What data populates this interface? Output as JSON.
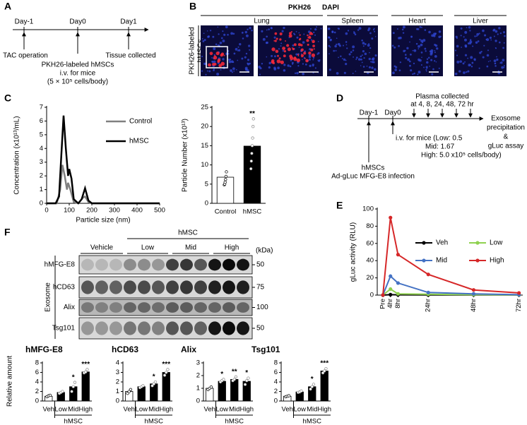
{
  "figure": {
    "A": {
      "label": "A",
      "days": [
        "Day-1",
        "Day0",
        "Day1"
      ],
      "note_day_minus1": "TAC operation",
      "note_day0": [
        "PKH26-labeled hMSCs",
        "i.v. for mice",
        "(5 × 10⁵ cells/body)"
      ],
      "note_day1": "Tissue collected"
    },
    "B": {
      "label": "B",
      "stains": [
        "PKH26",
        "DAPI"
      ],
      "tissues": [
        "Lung",
        "Spleen",
        "Heart",
        "Liver"
      ],
      "side_label": [
        "PKH26-labeled",
        "hMSCs"
      ]
    },
    "C": {
      "label": "C"
    },
    "D": {
      "label": "D",
      "days": [
        "Day-1",
        "Day0"
      ],
      "plasma": [
        "Plasma collected",
        "at 4, 8, 24, 48, 72 hr"
      ],
      "end": [
        "Exosome",
        "precipitation",
        "&",
        "gLuc assay"
      ],
      "dose": [
        "i.v. for mice (Low: 0.5",
        "Mid: 1.67",
        "High: 5.0 x10⁵ cells/body)"
      ],
      "cells": [
        "hMSCs",
        "Ad-gLuc MFG-E8 infection"
      ]
    },
    "E": {
      "label": "E"
    },
    "F": {
      "label": "F",
      "group": "hMSC",
      "lanes": [
        "Vehicle",
        "Low",
        "Mid",
        "High"
      ],
      "unit": "(kDa)",
      "side_label": "Exosome",
      "rows": [
        {
          "name": "hMFG-E8",
          "marker": "50"
        },
        {
          "name": "hCD63",
          "marker": "75"
        },
        {
          "name": "Alix",
          "marker": "100"
        },
        {
          "name": "Tsg101",
          "marker": "50"
        }
      ]
    }
  },
  "chart_data": [
    {
      "type": "line",
      "xlabel": "Particle size (nm)",
      "ylabel": "Concentration (x10¹³/mL)",
      "xlim": [
        0,
        500
      ],
      "xticks": [
        0,
        100,
        200,
        300,
        400,
        500
      ],
      "ylim": [
        0,
        7
      ],
      "yticks": [
        0,
        1,
        2,
        3,
        4,
        5,
        6,
        7
      ],
      "legend": "upper right",
      "series": [
        {
          "name": "Control",
          "color": "#808080",
          "x": [
            0,
            45,
            60,
            70,
            80,
            90,
            95,
            105,
            120,
            140,
            160,
            170,
            185,
            200,
            500
          ],
          "values": [
            0,
            0,
            1,
            2.8,
            2,
            1,
            1.5,
            1,
            0.1,
            0,
            0.4,
            0.5,
            0.1,
            0,
            0
          ]
        },
        {
          "name": "hMSC",
          "color": "#000000",
          "x": [
            0,
            40,
            55,
            65,
            75,
            85,
            95,
            100,
            110,
            120,
            140,
            155,
            170,
            185,
            200,
            500
          ],
          "values": [
            0,
            0,
            0.5,
            3.5,
            6.4,
            4,
            2,
            2.5,
            1.8,
            0.3,
            0,
            0.3,
            1.1,
            0.2,
            0,
            0
          ]
        }
      ]
    },
    {
      "type": "bar",
      "ylabel": "Particle Number (x10¹³)",
      "categories": [
        "Control",
        "hMSC"
      ],
      "values": [
        6.8,
        14.9
      ],
      "colors": [
        "#ffffff",
        "#000000"
      ],
      "points": [
        [
          4.8,
          5,
          5.5,
          6.2,
          7,
          8.2
        ],
        [
          9,
          11,
          13,
          15,
          17,
          20,
          22
        ]
      ],
      "ylim": [
        0,
        25
      ],
      "yticks": [
        0,
        5,
        10,
        15,
        20,
        25
      ],
      "annotations": [
        {
          "index": 1,
          "text": "**"
        }
      ]
    },
    {
      "type": "line",
      "ylabel": "gLuc activity (RLU)",
      "x": [
        0,
        4,
        8,
        24,
        48,
        72
      ],
      "xticks": [
        {
          "value": 0,
          "label": "Pre"
        },
        {
          "value": 4,
          "label": "4hr"
        },
        {
          "value": 8,
          "label": "8hr"
        },
        {
          "value": 24,
          "label": "24hr"
        },
        {
          "value": 48,
          "label": "48hr"
        },
        {
          "value": 72,
          "label": "72hr"
        }
      ],
      "xlim": [
        -3,
        74
      ],
      "ylim": [
        0,
        100
      ],
      "yticks": [
        0,
        20,
        40,
        60,
        80,
        100
      ],
      "legend": "upper right",
      "markers": true,
      "series": [
        {
          "name": "Veh",
          "color": "#000000",
          "values": [
            0,
            0.5,
            0.3,
            0.2,
            0.2,
            0.2
          ]
        },
        {
          "name": "Low",
          "color": "#8fd14f",
          "values": [
            0,
            7,
            1.5,
            1,
            0.5,
            0.3
          ]
        },
        {
          "name": "Mid",
          "color": "#4472c4",
          "values": [
            0,
            22,
            14,
            3,
            1.5,
            0.5
          ]
        },
        {
          "name": "High",
          "color": "#d62728",
          "values": [
            0,
            90,
            47,
            24,
            6,
            2.5
          ]
        }
      ]
    },
    {
      "type": "bar",
      "title": "hMFG-E8",
      "ylabel": "Relative amount",
      "group": "hMSC",
      "categories": [
        "Veh",
        "Low",
        "Mid",
        "High"
      ],
      "values": [
        1,
        1.8,
        3,
        6.1
      ],
      "colors": [
        "#ffffff",
        "#000000",
        "#000000",
        "#000000"
      ],
      "points": [
        [
          0.9,
          1.1,
          1.2
        ],
        [
          1.6,
          1.8,
          2.0
        ],
        [
          2.0,
          3.0,
          3.9
        ],
        [
          5.9,
          6.1,
          6.6
        ]
      ],
      "ylim": [
        0,
        8
      ],
      "yticks": [
        0,
        2,
        4,
        6,
        8
      ],
      "annotations": [
        {
          "index": 2,
          "text": "*"
        },
        {
          "index": 3,
          "text": "***"
        }
      ]
    },
    {
      "type": "bar",
      "title": "hCD63",
      "group": "hMSC",
      "categories": [
        "Veh",
        "Low",
        "Mid",
        "High"
      ],
      "values": [
        1,
        1.5,
        1.8,
        3.0
      ],
      "colors": [
        "#ffffff",
        "#000000",
        "#000000",
        "#000000"
      ],
      "points": [
        [
          0.8,
          1.0,
          1.2
        ],
        [
          1.4,
          1.5,
          1.6
        ],
        [
          1.6,
          1.8,
          2.0
        ],
        [
          2.7,
          3.0,
          3.3
        ]
      ],
      "ylim": [
        0,
        4
      ],
      "yticks": [
        0,
        1,
        2,
        3,
        4
      ],
      "annotations": [
        {
          "index": 2,
          "text": "*"
        },
        {
          "index": 3,
          "text": "***"
        }
      ]
    },
    {
      "type": "bar",
      "title": "Alix",
      "group": "hMSC",
      "categories": [
        "Veh",
        "Low",
        "Mid",
        "High"
      ],
      "values": [
        1,
        1.55,
        1.7,
        1.55
      ],
      "colors": [
        "#ffffff",
        "#000000",
        "#000000",
        "#000000"
      ],
      "points": [
        [
          0.9,
          1.0,
          1.1
        ],
        [
          1.5,
          1.6,
          1.7
        ],
        [
          1.6,
          1.7,
          1.9
        ],
        [
          1.3,
          1.6,
          1.8
        ]
      ],
      "ylim": [
        0,
        3
      ],
      "yticks": [
        0,
        1,
        2,
        3
      ],
      "annotations": [
        {
          "index": 1,
          "text": "*"
        },
        {
          "index": 2,
          "text": "**"
        },
        {
          "index": 3,
          "text": "*"
        }
      ]
    },
    {
      "type": "bar",
      "title": "Tsg101",
      "group": "hMSC",
      "categories": [
        "Veh",
        "Low",
        "Mid",
        "High"
      ],
      "values": [
        1,
        1.9,
        3,
        6.3
      ],
      "colors": [
        "#ffffff",
        "#000000",
        "#000000",
        "#000000"
      ],
      "points": [
        [
          0.9,
          1.0,
          1.1
        ],
        [
          1.8,
          1.9,
          2.1
        ],
        [
          2.5,
          3.0,
          3.5
        ],
        [
          5.9,
          6.3,
          6.8
        ]
      ],
      "ylim": [
        0,
        8
      ],
      "yticks": [
        0,
        2,
        4,
        6,
        8
      ],
      "annotations": [
        {
          "index": 2,
          "text": "*"
        },
        {
          "index": 3,
          "text": "***"
        }
      ]
    }
  ]
}
